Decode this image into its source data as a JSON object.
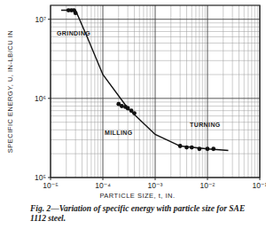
{
  "chart_data": {
    "type": "scatter",
    "title": "Fig. 2—Variation of specific energy with particle size for SAE 1112 steel.",
    "x_label": "PARTICLE SIZE, t, IN.",
    "y_label": "SPECIFIC ENERGY, U, IN-LB/CU IN",
    "log": true,
    "grid": true,
    "xlim": [
      1e-05,
      0.1
    ],
    "ylim": [
      100000,
      15000000
    ],
    "xticks": [
      {
        "value": 1e-05,
        "label": "10⁻⁵"
      },
      {
        "value": 0.0001,
        "label": "10⁻⁴"
      },
      {
        "value": 0.001,
        "label": "10⁻³"
      },
      {
        "value": 0.01,
        "label": "10⁻²"
      },
      {
        "value": 0.1,
        "label": "10⁻¹"
      }
    ],
    "yticks": [
      {
        "value": 100000,
        "label": "10⁵"
      },
      {
        "value": 1000000,
        "label": "10⁶"
      },
      {
        "value": 10000000,
        "label": "10⁷"
      }
    ],
    "series": [
      {
        "name": "GRINDING",
        "type": "scatter",
        "marker": "circle",
        "color": "#111111",
        "x": [
          2.2e-05,
          2.5e-05,
          2.8e-05,
          3e-05
        ],
        "values": [
          13000000,
          13000000,
          13000000,
          12000000
        ]
      },
      {
        "name": "MILLING",
        "type": "scatter",
        "marker": "circle",
        "color": "#111111",
        "x": [
          0.0002,
          0.00023,
          0.00027,
          0.0003,
          0.00035,
          0.0004
        ],
        "values": [
          850000,
          800000,
          780000,
          750000,
          700000,
          650000
        ]
      },
      {
        "name": "TURNING",
        "type": "scatter",
        "marker": "circle",
        "color": "#111111",
        "x": [
          0.003,
          0.004,
          0.005,
          0.007,
          0.01,
          0.013
        ],
        "values": [
          250000,
          240000,
          240000,
          230000,
          230000,
          230000
        ]
      },
      {
        "type": "line",
        "line_style": "solid",
        "color": "#111111",
        "x": [
          1.6e-05,
          3e-05,
          5e-05,
          0.0001,
          0.0003,
          0.001,
          0.003,
          0.01,
          0.025
        ],
        "values": [
          13000000,
          13000000,
          6000000,
          2000000,
          750000,
          350000,
          250000,
          230000,
          220000
        ]
      }
    ]
  }
}
